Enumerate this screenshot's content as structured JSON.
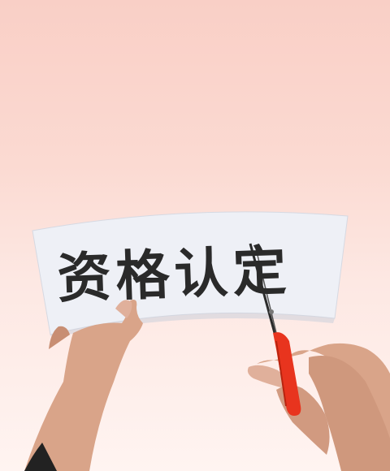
{
  "sign": {
    "text": "资格认定"
  },
  "colors": {
    "bg_top": "#f9cfc6",
    "bg_bottom": "#fff4f1",
    "paper": "#eef0f6",
    "scissor_handle": "#e8341e",
    "ink": "#2a2a2a"
  },
  "scene": [
    "paper-sheet",
    "left-hand",
    "right-hand",
    "scissors"
  ]
}
